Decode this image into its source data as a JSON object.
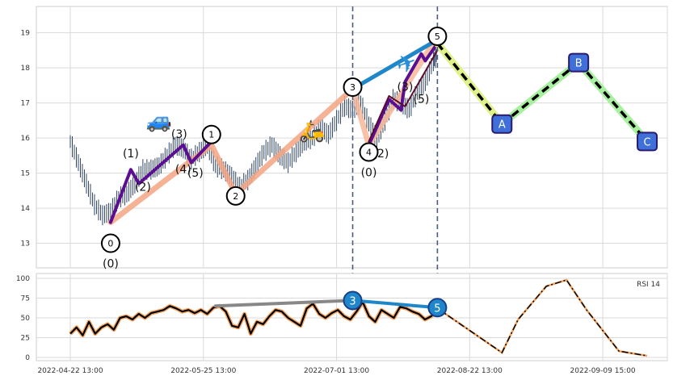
{
  "chart_data": [
    {
      "type": "line",
      "panel": "price",
      "ylim": [
        12.3,
        19.75
      ],
      "yticks": [
        "13",
        "14",
        "15",
        "16",
        "17",
        "18",
        "19"
      ],
      "grid": true,
      "price_series": [
        {
          "x": 0,
          "y": 15.9
        },
        {
          "x": 2,
          "y": 15.3
        },
        {
          "x": 4,
          "y": 14.7
        },
        {
          "x": 6,
          "y": 14.1
        },
        {
          "x": 8,
          "y": 13.8
        },
        {
          "x": 10,
          "y": 13.9
        },
        {
          "x": 12,
          "y": 14.3
        },
        {
          "x": 14,
          "y": 14.4
        },
        {
          "x": 16,
          "y": 14.7
        },
        {
          "x": 18,
          "y": 15.1
        },
        {
          "x": 20,
          "y": 15.1
        },
        {
          "x": 22,
          "y": 15.2
        },
        {
          "x": 24,
          "y": 15.5
        },
        {
          "x": 26,
          "y": 15.8
        },
        {
          "x": 28,
          "y": 15.7
        },
        {
          "x": 30,
          "y": 15.4
        },
        {
          "x": 32,
          "y": 15.6
        },
        {
          "x": 34,
          "y": 15.8
        },
        {
          "x": 36,
          "y": 15.2
        },
        {
          "x": 38,
          "y": 15.1
        },
        {
          "x": 40,
          "y": 14.9
        },
        {
          "x": 42,
          "y": 14.6
        },
        {
          "x": 44,
          "y": 14.8
        },
        {
          "x": 46,
          "y": 15.2
        },
        {
          "x": 48,
          "y": 15.6
        },
        {
          "x": 50,
          "y": 15.8
        },
        {
          "x": 52,
          "y": 15.5
        },
        {
          "x": 54,
          "y": 15.3
        },
        {
          "x": 56,
          "y": 15.6
        },
        {
          "x": 58,
          "y": 15.9
        },
        {
          "x": 60,
          "y": 16.0
        },
        {
          "x": 62,
          "y": 16.3
        },
        {
          "x": 64,
          "y": 16.1
        },
        {
          "x": 66,
          "y": 16.5
        },
        {
          "x": 68,
          "y": 16.9
        },
        {
          "x": 70,
          "y": 16.8
        },
        {
          "x": 72,
          "y": 17.0
        },
        {
          "x": 74,
          "y": 16.4
        },
        {
          "x": 76,
          "y": 16.0
        },
        {
          "x": 78,
          "y": 16.5
        },
        {
          "x": 80,
          "y": 17.1
        },
        {
          "x": 82,
          "y": 17.0
        },
        {
          "x": 84,
          "y": 16.8
        },
        {
          "x": 86,
          "y": 17.3
        },
        {
          "x": 88,
          "y": 17.6
        },
        {
          "x": 90,
          "y": 18.2
        },
        {
          "x": 91,
          "y": 18.4
        }
      ],
      "waves": [
        {
          "name": "pink",
          "color": "#f4a582",
          "points": [
            [
              10,
              13.6
            ],
            [
              35,
              15.8
            ],
            [
              41,
              14.4
            ],
            [
              70,
              17.4
            ]
          ]
        },
        {
          "name": "brown",
          "color": "#f7b799",
          "points": [
            [
              70,
              17.4
            ],
            [
              74,
              15.8
            ],
            [
              91,
              18.9
            ]
          ]
        },
        {
          "name": "purple-1",
          "color": "#5b0e91",
          "points": [
            [
              10,
              13.6
            ],
            [
              15,
              15.1
            ],
            [
              17,
              14.7
            ],
            [
              28,
              15.8
            ],
            [
              30,
              15.3
            ],
            [
              35,
              15.9
            ]
          ]
        },
        {
          "name": "purple-2",
          "color": "#5b0e91",
          "points": [
            [
              74,
              15.8
            ],
            [
              79,
              17.1
            ],
            [
              82,
              16.8
            ],
            [
              83,
              17.6
            ],
            [
              87,
              18.4
            ],
            [
              88,
              18.2
            ],
            [
              91,
              18.7
            ]
          ]
        },
        {
          "name": "dark-red",
          "color": "#5a0a2b",
          "points": [
            [
              74,
              15.9
            ],
            [
              79,
              17.2
            ],
            [
              83,
              16.9
            ],
            [
              91,
              18.5
            ]
          ]
        },
        {
          "name": "blue-dash",
          "color": "#1f87c9",
          "points": [
            [
              70,
              17.4
            ],
            [
              91,
              18.8
            ]
          ]
        }
      ],
      "forecast": {
        "points": [
          [
            91,
            18.7
          ],
          [
            107,
            16.4
          ],
          [
            126,
            18.15
          ],
          [
            143,
            15.9
          ]
        ],
        "labels": [
          "A",
          "B",
          "C"
        ]
      },
      "markers": [
        {
          "text": "0",
          "x": 10,
          "y": 13.0,
          "sub": "(0)"
        },
        {
          "text": "1",
          "x": 35,
          "y": 16.1,
          "sub": ""
        },
        {
          "text": "2",
          "x": 41,
          "y": 14.35,
          "sub": ""
        },
        {
          "text": "3",
          "x": 70,
          "y": 17.45,
          "sub": ""
        },
        {
          "text": "4",
          "x": 74,
          "y": 15.6,
          "sub": "(0)"
        },
        {
          "text": "5",
          "x": 91,
          "y": 18.9,
          "sub": ""
        }
      ],
      "sub_labels": [
        "(1)",
        "(2)",
        "(3)",
        "(4)",
        "(5)",
        "(2)",
        "(3)",
        "(5)"
      ],
      "vertical_lines_x": [
        70,
        91
      ]
    },
    {
      "type": "line",
      "panel": "indicator",
      "legend": "RSI 14",
      "ylim": [
        0,
        100
      ],
      "yticks": [
        "0",
        "25",
        "50",
        "75",
        "100"
      ],
      "rsi_values": [
        30,
        38,
        28,
        45,
        30,
        38,
        42,
        35,
        50,
        52,
        48,
        55,
        50,
        56,
        58,
        60,
        65,
        62,
        58,
        60,
        56,
        60,
        55,
        63,
        65,
        58,
        40,
        38,
        55,
        30,
        45,
        42,
        52,
        60,
        58,
        50,
        45,
        40,
        62,
        68,
        55,
        50,
        56,
        60,
        52,
        48,
        58,
        70,
        52,
        45,
        60,
        55,
        50,
        64,
        62,
        58,
        55,
        48,
        52,
        60
      ],
      "rsi_forecast": [
        [
          91,
          62
        ],
        [
          107,
          6
        ],
        [
          111,
          48
        ],
        [
          118,
          90
        ],
        [
          123,
          98
        ],
        [
          128,
          60
        ],
        [
          136,
          8
        ],
        [
          143,
          2
        ]
      ],
      "trend_lines": [
        {
          "color": "#888888",
          "points": [
            [
              36,
              65
            ],
            [
              70,
              72
            ]
          ]
        },
        {
          "color": "#1f87c9",
          "points": [
            [
              70,
              72
            ],
            [
              91,
              63
            ]
          ]
        }
      ],
      "markers": [
        {
          "text": "3",
          "x": 70,
          "y": 72
        },
        {
          "text": "5",
          "x": 91,
          "y": 63
        }
      ]
    }
  ],
  "x_ticks": [
    {
      "label": "2022-04-22 13:00",
      "x": 0
    },
    {
      "label": "2022-05-25 13:00",
      "x": 33
    },
    {
      "label": "2022-07-01 13:00",
      "x": 66
    },
    {
      "label": "2022-08-22 13:00",
      "x": 99
    },
    {
      "label": "2022-09-09 15:00",
      "x": 132
    }
  ],
  "icons": [
    {
      "name": "car-icon",
      "glyph": "🚙",
      "x": 22,
      "y": 16.3
    },
    {
      "name": "scooter-icon",
      "glyph": "🛵",
      "x": 60,
      "y": 16.0
    },
    {
      "name": "airplane-icon",
      "glyph": "✈",
      "x": 84,
      "y": 17.9
    }
  ],
  "colors": {
    "grid": "#d9d9d9",
    "axis": "#cccccc",
    "price": "#2f4564",
    "forecast_dash": "#000000",
    "rsi_line": "#000000",
    "rsi_glow": "#f4a460",
    "marker_fill": "#1f87c9",
    "abc_fill": "#3f6fd8"
  }
}
